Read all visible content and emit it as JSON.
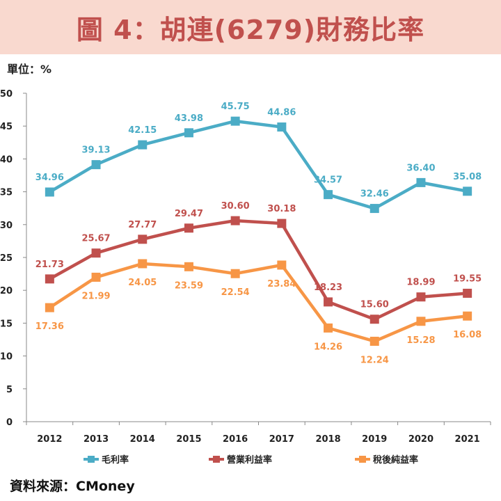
{
  "header": {
    "title": "圖 4：胡連(6279)財務比率"
  },
  "unit": "單位：%",
  "source": "資料來源：CMoney",
  "colors": {
    "gross": "#4bacc6",
    "operating": "#c0504d",
    "net": "#f79646",
    "title_bg": "#f9d9cf",
    "title_text": "#c0504d"
  },
  "chart_data": {
    "type": "line",
    "title": "圖 4：胡連(6279)財務比率",
    "xlabel": "",
    "ylabel": "單位：%",
    "categories": [
      "2012",
      "2013",
      "2014",
      "2015",
      "2016",
      "2017",
      "2018",
      "2019",
      "2020",
      "2021"
    ],
    "ylim": [
      0,
      50
    ],
    "yticks": [
      0,
      5,
      10,
      15,
      20,
      25,
      30,
      35,
      40,
      45,
      50
    ],
    "legend_position": "bottom",
    "series": [
      {
        "name": "毛利率",
        "color": "#4bacc6",
        "label_pos": "above",
        "values": [
          34.96,
          39.13,
          42.15,
          43.98,
          45.75,
          44.86,
          34.57,
          32.46,
          36.4,
          35.08
        ],
        "labels": [
          "34.96",
          "39.13",
          "42.15",
          "43.98",
          "45.75",
          "44.86",
          "34.57",
          "32.46",
          "36.40",
          "35.08"
        ]
      },
      {
        "name": "營業利益率",
        "color": "#c0504d",
        "label_pos": "above",
        "values": [
          21.73,
          25.67,
          27.77,
          29.47,
          30.6,
          30.18,
          18.23,
          15.6,
          18.99,
          19.55
        ],
        "labels": [
          "21.73",
          "25.67",
          "27.77",
          "29.47",
          "30.60",
          "30.18",
          "18.23",
          "15.60",
          "18.99",
          "19.55"
        ]
      },
      {
        "name": "稅後純益率",
        "color": "#f79646",
        "label_pos": "below",
        "values": [
          17.36,
          21.99,
          24.05,
          23.59,
          22.54,
          23.84,
          14.26,
          12.24,
          15.28,
          16.08
        ],
        "labels": [
          "17.36",
          "21.99",
          "24.05",
          "23.59",
          "22.54",
          "23.84",
          "14.26",
          "12.24",
          "15.28",
          "16.08"
        ]
      }
    ]
  }
}
